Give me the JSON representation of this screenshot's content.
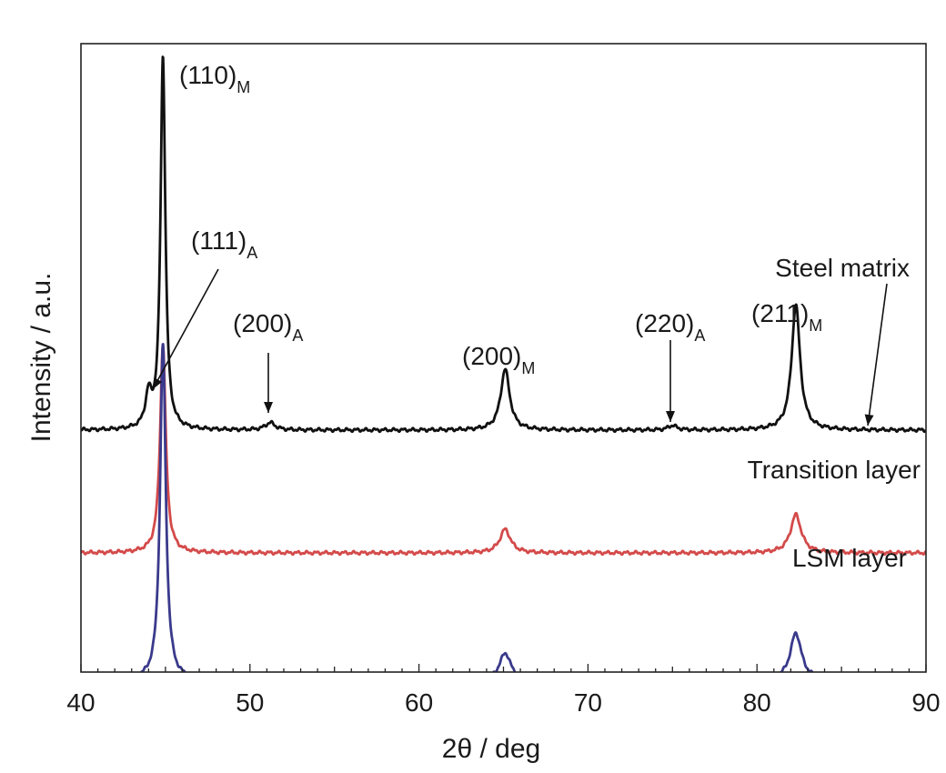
{
  "chart_data": {
    "type": "line",
    "xlabel": "2θ / deg",
    "ylabel": "Intensity / a.u.",
    "xlim": [
      40,
      90
    ],
    "x_ticks": [
      "40",
      "50",
      "60",
      "70",
      "80",
      "90"
    ],
    "y_ticks_shown": false,
    "grid": false,
    "legend": "none",
    "series": [
      {
        "name": "Steel matrix",
        "color": "#111111",
        "baseline": 0.0,
        "peaks": [
          {
            "two_theta": 44.0,
            "height": 0.35,
            "width": 0.22
          },
          {
            "two_theta": 44.85,
            "height": 4.1,
            "width": 0.17
          },
          {
            "two_theta": 51.2,
            "height": 0.08,
            "width": 0.35
          },
          {
            "two_theta": 65.1,
            "height": 0.67,
            "width": 0.32
          },
          {
            "two_theta": 75.0,
            "height": 0.05,
            "width": 0.3
          },
          {
            "two_theta": 82.3,
            "height": 1.38,
            "width": 0.3
          }
        ]
      },
      {
        "name": "Transition layer",
        "color": "#d44a4a",
        "baseline": -1.35,
        "peaks": [
          {
            "two_theta": 44.85,
            "height": 2.3,
            "width": 0.2
          },
          {
            "two_theta": 65.1,
            "height": 0.26,
            "width": 0.38
          },
          {
            "two_theta": 82.3,
            "height": 0.42,
            "width": 0.38
          }
        ]
      },
      {
        "name": "LSM layer",
        "color": "#3a3a8c",
        "baseline": -2.75,
        "peaks": [
          {
            "two_theta": 44.85,
            "height": 3.7,
            "width": 0.2
          },
          {
            "two_theta": 65.1,
            "height": 0.3,
            "width": 0.4
          },
          {
            "two_theta": 82.3,
            "height": 0.52,
            "width": 0.4
          }
        ]
      }
    ],
    "series_labels": [
      "Steel matrix",
      "Transition layer",
      "LSM layer"
    ],
    "peak_labels": [
      {
        "main": "(110)",
        "sub": "M",
        "two_theta": 44.85
      },
      {
        "main": "(111)",
        "sub": "A",
        "two_theta": 44.0
      },
      {
        "main": "(200)",
        "sub": "A",
        "two_theta": 51.2
      },
      {
        "main": "(200)",
        "sub": "M",
        "two_theta": 65.1
      },
      {
        "main": "(220)",
        "sub": "A",
        "two_theta": 75.0
      },
      {
        "main": "(211)",
        "sub": "M",
        "two_theta": 82.3
      }
    ]
  }
}
